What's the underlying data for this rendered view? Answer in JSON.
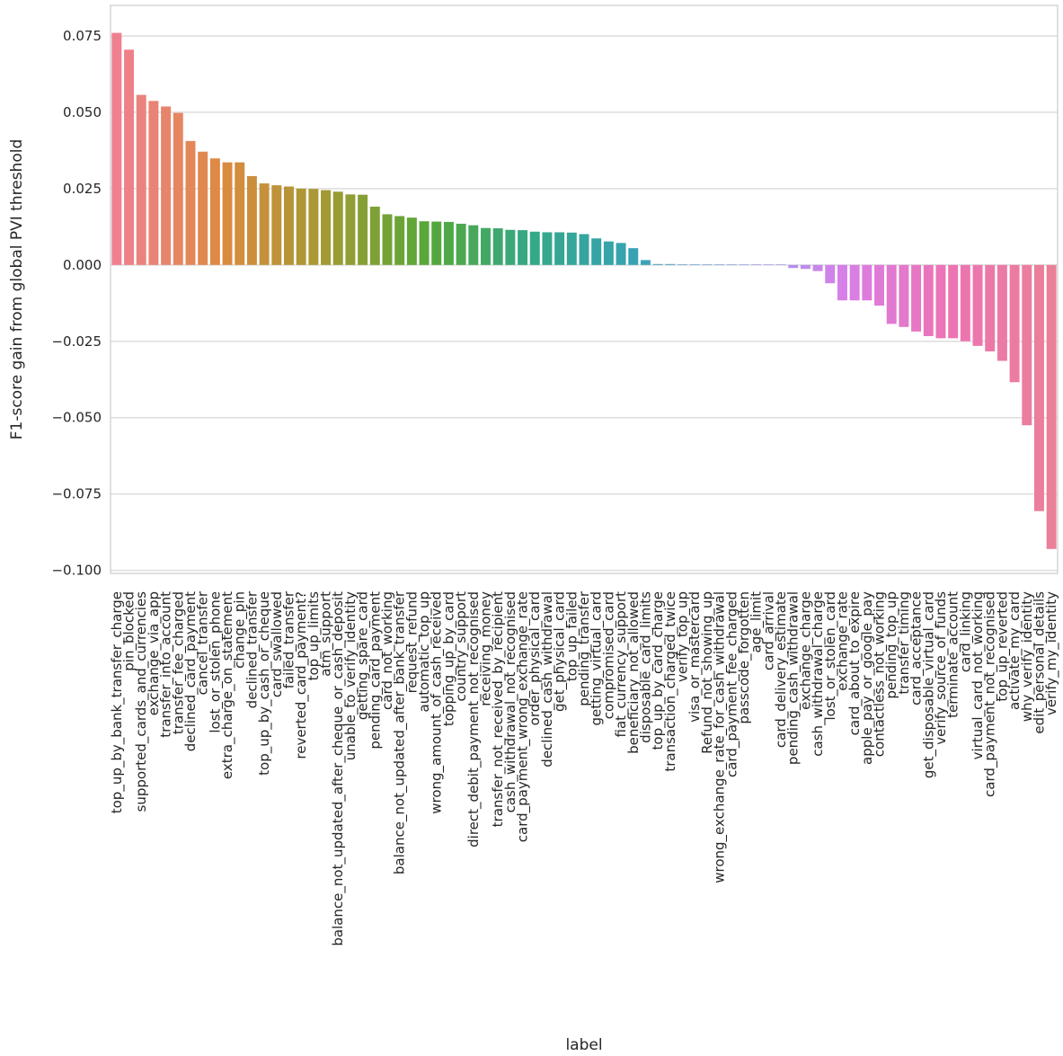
{
  "chart_data": {
    "type": "bar",
    "title": "",
    "xlabel": "label",
    "ylabel": "F1-score gain from global PVI threshold",
    "ylim": [
      -0.101,
      0.085
    ],
    "yticks": [
      0.075,
      0.05,
      0.025,
      0.0,
      -0.025,
      -0.05,
      -0.075,
      -0.1
    ],
    "ytick_labels": [
      "0.075",
      "0.050",
      "0.025",
      "0.000",
      "−0.025",
      "−0.050",
      "−0.075",
      "−0.100"
    ],
    "grid": true,
    "legend": "none",
    "categories": [
      "top_up_by_bank_transfer_charge",
      "pin_blocked",
      "supported_cards_and_currencies",
      "exchange_via_app",
      "transfer_into_account",
      "transfer_fee_charged",
      "declined_card_payment",
      "cancel_transfer",
      "lost_or_stolen_phone",
      "extra_charge_on_statement",
      "change_pin",
      "declined_transfer",
      "top_up_by_cash_or_cheque",
      "card_swallowed",
      "failed_transfer",
      "reverted_card_payment?",
      "top_up_limits",
      "atm_support",
      "balance_not_updated_after_cheque_or_cash_deposit",
      "unable_to_verify_identity",
      "getting_spare_card",
      "pending_card_payment",
      "card_not_working",
      "balance_not_updated_after_bank_transfer",
      "request_refund",
      "automatic_top_up",
      "wrong_amount_of_cash_received",
      "topping_up_by_card",
      "country_support",
      "direct_debit_payment_not_recognised",
      "receiving_money",
      "transfer_not_received_by_recipient",
      "cash_withdrawal_not_recognised",
      "card_payment_wrong_exchange_rate",
      "order_physical_card",
      "declined_cash_withdrawal",
      "get_physical_card",
      "top_up_failed",
      "pending_transfer",
      "getting_virtual_card",
      "compromised_card",
      "fiat_currency_support",
      "beneficiary_not_allowed",
      "disposable_card_limits",
      "top_up_by_card_charge",
      "transaction_charged_twice",
      "verify_top_up",
      "visa_or_mastercard",
      "Refund_not_showing_up",
      "wrong_exchange_rate_for_cash_withdrawal",
      "card_payment_fee_charged",
      "passcode_forgotten",
      "age_limit",
      "card_arrival",
      "card_delivery_estimate",
      "pending_cash_withdrawal",
      "exchange_charge",
      "cash_withdrawal_charge",
      "lost_or_stolen_card",
      "exchange_rate",
      "card_about_to_expire",
      "apple_pay_or_google_pay",
      "contactless_not_working",
      "pending_top_up",
      "transfer_timing",
      "card_acceptance",
      "get_disposable_virtual_card",
      "verify_source_of_funds",
      "terminate_account",
      "card_linking",
      "virtual_card_not_working",
      "card_payment_not_recognised",
      "top_up_reverted",
      "activate_my_card",
      "why_verify_identity",
      "edit_personal_details",
      "verify_my_identity"
    ],
    "values": [
      0.076,
      0.0705,
      0.0557,
      0.0537,
      0.0519,
      0.0498,
      0.0406,
      0.0371,
      0.0349,
      0.0336,
      0.0336,
      0.0291,
      0.0267,
      0.0261,
      0.0257,
      0.025,
      0.0249,
      0.0245,
      0.024,
      0.0231,
      0.023,
      0.0191,
      0.0166,
      0.016,
      0.0155,
      0.0143,
      0.0142,
      0.0141,
      0.0135,
      0.013,
      0.0121,
      0.012,
      0.0115,
      0.0114,
      0.0109,
      0.0107,
      0.0107,
      0.0106,
      0.0101,
      0.0087,
      0.0077,
      0.0072,
      0.0055,
      0.0016,
      0.0003,
      0.0003,
      0.0002,
      0.0002,
      0.0002,
      0.0002,
      0.0002,
      0.0002,
      0.0002,
      0.0002,
      0.0002,
      -0.001,
      -0.0013,
      -0.002,
      -0.006,
      -0.0116,
      -0.0116,
      -0.0116,
      -0.0133,
      -0.0193,
      -0.0203,
      -0.0218,
      -0.0233,
      -0.024,
      -0.024,
      -0.025,
      -0.0265,
      -0.0283,
      -0.0314,
      -0.0384,
      -0.0525,
      -0.0806,
      -0.093
    ],
    "palette_start": "#f07f90",
    "palette_colors": [
      "#f07f90",
      "#dd8a41",
      "#a39a32",
      "#55a838",
      "#34a888",
      "#37a2b5",
      "#8e9ff0",
      "#d87fe8",
      "#ed73b5",
      "#ea8098"
    ]
  }
}
